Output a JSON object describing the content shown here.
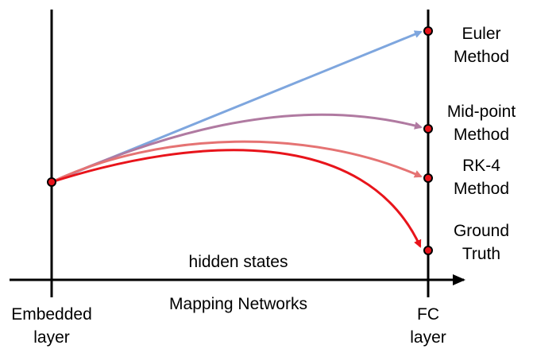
{
  "colors": {
    "euler": "#7EA6DE",
    "midpoint": "#B07AA1",
    "rk4": "#E57373",
    "ground_truth": "#E8141B",
    "axis": "#000000",
    "point_fill": "#E8141B"
  },
  "labels": {
    "hidden_states": "hidden states",
    "mapping_networks": "Mapping Networks",
    "embedded_line1": "Embedded",
    "embedded_line2": "layer",
    "fc_line1": "FC",
    "fc_line2": "layer"
  },
  "methods": {
    "euler": {
      "line1": "Euler",
      "line2": "Method"
    },
    "midpoint": {
      "line1": "Mid-point",
      "line2": "Method"
    },
    "rk4": {
      "line1": "RK-4",
      "line2": "Method"
    },
    "ground_truth": {
      "line1": "Ground",
      "line2": "Truth"
    }
  }
}
